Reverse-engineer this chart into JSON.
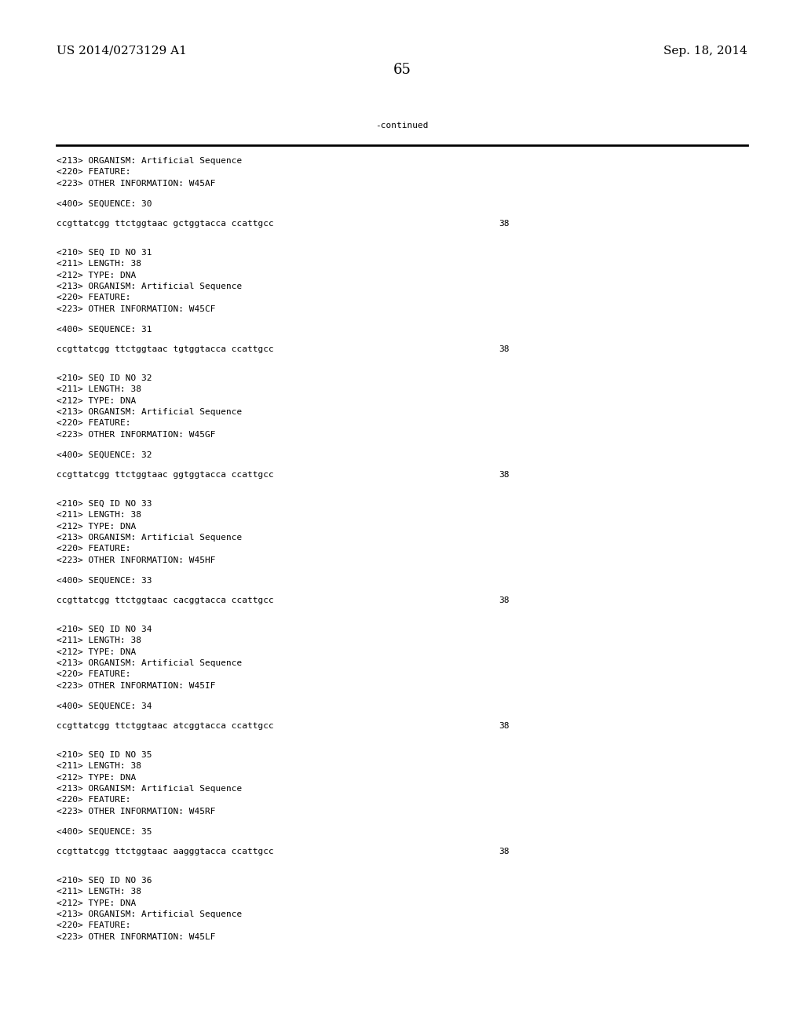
{
  "bg_color": "#ffffff",
  "top_left": "US 2014/0273129 A1",
  "top_right": "Sep. 18, 2014",
  "page_number": "65",
  "continued_label": "-continued",
  "monospace_font_size": 8.0,
  "serif_font_size": 11.0,
  "page_num_font_size": 13.0,
  "content_lines": [
    {
      "text": "<213> ORGANISM: Artificial Sequence",
      "type": "mono"
    },
    {
      "text": "<220> FEATURE:",
      "type": "mono"
    },
    {
      "text": "<223> OTHER INFORMATION: W45AF",
      "type": "mono"
    },
    {
      "text": "",
      "type": "blank"
    },
    {
      "text": "<400> SEQUENCE: 30",
      "type": "mono"
    },
    {
      "text": "",
      "type": "blank"
    },
    {
      "text": "ccgttatcgg ttctggtaac gctggtacca ccattgcc",
      "type": "seq",
      "num": "38"
    },
    {
      "text": "",
      "type": "blank"
    },
    {
      "text": "",
      "type": "blank"
    },
    {
      "text": "<210> SEQ ID NO 31",
      "type": "mono"
    },
    {
      "text": "<211> LENGTH: 38",
      "type": "mono"
    },
    {
      "text": "<212> TYPE: DNA",
      "type": "mono"
    },
    {
      "text": "<213> ORGANISM: Artificial Sequence",
      "type": "mono"
    },
    {
      "text": "<220> FEATURE:",
      "type": "mono"
    },
    {
      "text": "<223> OTHER INFORMATION: W45CF",
      "type": "mono"
    },
    {
      "text": "",
      "type": "blank"
    },
    {
      "text": "<400> SEQUENCE: 31",
      "type": "mono"
    },
    {
      "text": "",
      "type": "blank"
    },
    {
      "text": "ccgttatcgg ttctggtaac tgtggtacca ccattgcc",
      "type": "seq",
      "num": "38"
    },
    {
      "text": "",
      "type": "blank"
    },
    {
      "text": "",
      "type": "blank"
    },
    {
      "text": "<210> SEQ ID NO 32",
      "type": "mono"
    },
    {
      "text": "<211> LENGTH: 38",
      "type": "mono"
    },
    {
      "text": "<212> TYPE: DNA",
      "type": "mono"
    },
    {
      "text": "<213> ORGANISM: Artificial Sequence",
      "type": "mono"
    },
    {
      "text": "<220> FEATURE:",
      "type": "mono"
    },
    {
      "text": "<223> OTHER INFORMATION: W45GF",
      "type": "mono"
    },
    {
      "text": "",
      "type": "blank"
    },
    {
      "text": "<400> SEQUENCE: 32",
      "type": "mono"
    },
    {
      "text": "",
      "type": "blank"
    },
    {
      "text": "ccgttatcgg ttctggtaac ggtggtacca ccattgcc",
      "type": "seq",
      "num": "38"
    },
    {
      "text": "",
      "type": "blank"
    },
    {
      "text": "",
      "type": "blank"
    },
    {
      "text": "<210> SEQ ID NO 33",
      "type": "mono"
    },
    {
      "text": "<211> LENGTH: 38",
      "type": "mono"
    },
    {
      "text": "<212> TYPE: DNA",
      "type": "mono"
    },
    {
      "text": "<213> ORGANISM: Artificial Sequence",
      "type": "mono"
    },
    {
      "text": "<220> FEATURE:",
      "type": "mono"
    },
    {
      "text": "<223> OTHER INFORMATION: W45HF",
      "type": "mono"
    },
    {
      "text": "",
      "type": "blank"
    },
    {
      "text": "<400> SEQUENCE: 33",
      "type": "mono"
    },
    {
      "text": "",
      "type": "blank"
    },
    {
      "text": "ccgttatcgg ttctggtaac cacggtacca ccattgcc",
      "type": "seq",
      "num": "38"
    },
    {
      "text": "",
      "type": "blank"
    },
    {
      "text": "",
      "type": "blank"
    },
    {
      "text": "<210> SEQ ID NO 34",
      "type": "mono"
    },
    {
      "text": "<211> LENGTH: 38",
      "type": "mono"
    },
    {
      "text": "<212> TYPE: DNA",
      "type": "mono"
    },
    {
      "text": "<213> ORGANISM: Artificial Sequence",
      "type": "mono"
    },
    {
      "text": "<220> FEATURE:",
      "type": "mono"
    },
    {
      "text": "<223> OTHER INFORMATION: W45IF",
      "type": "mono"
    },
    {
      "text": "",
      "type": "blank"
    },
    {
      "text": "<400> SEQUENCE: 34",
      "type": "mono"
    },
    {
      "text": "",
      "type": "blank"
    },
    {
      "text": "ccgttatcgg ttctggtaac atcggtacca ccattgcc",
      "type": "seq",
      "num": "38"
    },
    {
      "text": "",
      "type": "blank"
    },
    {
      "text": "",
      "type": "blank"
    },
    {
      "text": "<210> SEQ ID NO 35",
      "type": "mono"
    },
    {
      "text": "<211> LENGTH: 38",
      "type": "mono"
    },
    {
      "text": "<212> TYPE: DNA",
      "type": "mono"
    },
    {
      "text": "<213> ORGANISM: Artificial Sequence",
      "type": "mono"
    },
    {
      "text": "<220> FEATURE:",
      "type": "mono"
    },
    {
      "text": "<223> OTHER INFORMATION: W45RF",
      "type": "mono"
    },
    {
      "text": "",
      "type": "blank"
    },
    {
      "text": "<400> SEQUENCE: 35",
      "type": "mono"
    },
    {
      "text": "",
      "type": "blank"
    },
    {
      "text": "ccgttatcgg ttctggtaac aagggtacca ccattgcc",
      "type": "seq",
      "num": "38"
    },
    {
      "text": "",
      "type": "blank"
    },
    {
      "text": "",
      "type": "blank"
    },
    {
      "text": "<210> SEQ ID NO 36",
      "type": "mono"
    },
    {
      "text": "<211> LENGTH: 38",
      "type": "mono"
    },
    {
      "text": "<212> TYPE: DNA",
      "type": "mono"
    },
    {
      "text": "<213> ORGANISM: Artificial Sequence",
      "type": "mono"
    },
    {
      "text": "<220> FEATURE:",
      "type": "mono"
    },
    {
      "text": "<223> OTHER INFORMATION: W45LF",
      "type": "mono"
    }
  ]
}
